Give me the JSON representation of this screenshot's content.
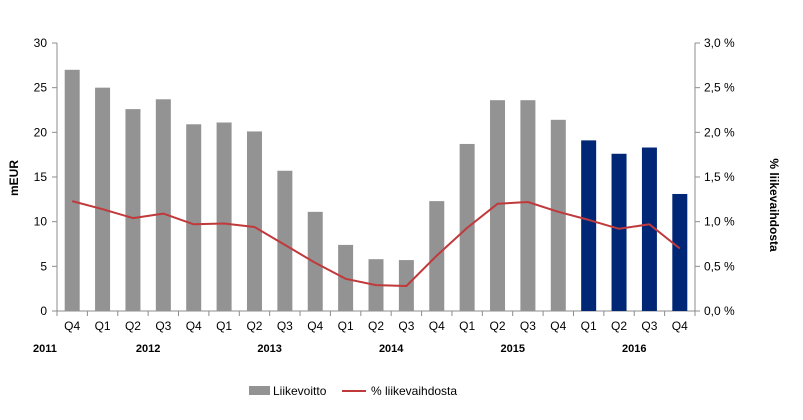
{
  "chart_data": {
    "type": "bar",
    "categories": [
      "Q4",
      "Q1",
      "Q2",
      "Q3",
      "Q4",
      "Q1",
      "Q2",
      "Q3",
      "Q4",
      "Q1",
      "Q2",
      "Q3",
      "Q4",
      "Q1",
      "Q2",
      "Q3",
      "Q4",
      "Q1",
      "Q2",
      "Q3",
      "Q4"
    ],
    "years": [
      {
        "label": "2011",
        "from": 0,
        "to": 0
      },
      {
        "label": "2012",
        "from": 1,
        "to": 4
      },
      {
        "label": "2013",
        "from": 5,
        "to": 8
      },
      {
        "label": "2014",
        "from": 9,
        "to": 12
      },
      {
        "label": "2015",
        "from": 13,
        "to": 16
      },
      {
        "label": "2016",
        "from": 17,
        "to": 20
      }
    ],
    "ylabel": "mEUR",
    "y2label": "% liikevaihdosta",
    "ylim": [
      0,
      30
    ],
    "y2lim": [
      0,
      3.0
    ],
    "yticks": [
      "0",
      "5",
      "10",
      "15",
      "20",
      "25",
      "30"
    ],
    "y2ticks": [
      "0,0 %",
      "0,5 %",
      "1,0 %",
      "1,5 %",
      "2,0 %",
      "2,5 %",
      "3,0 %"
    ],
    "grid": false,
    "legend_position": "bottom",
    "series": [
      {
        "name": "Liikevoitto",
        "type": "bar",
        "axis": "left",
        "values": [
          27.0,
          25.0,
          22.6,
          23.7,
          20.9,
          21.1,
          20.1,
          15.7,
          11.1,
          7.4,
          5.8,
          5.7,
          12.3,
          18.7,
          23.6,
          23.6,
          21.4,
          19.1,
          17.6,
          18.3,
          13.1
        ],
        "color": "#939393",
        "highlight_color": "#002776",
        "highlight_from": 17
      },
      {
        "name": "% liikevaihdosta",
        "type": "line",
        "axis": "right",
        "values": [
          1.23,
          1.14,
          1.04,
          1.09,
          0.97,
          0.98,
          0.94,
          0.74,
          0.54,
          0.36,
          0.29,
          0.28,
          0.62,
          0.93,
          1.2,
          1.22,
          1.11,
          1.02,
          0.92,
          0.97,
          0.7
        ],
        "color": "#c0393b"
      }
    ]
  }
}
